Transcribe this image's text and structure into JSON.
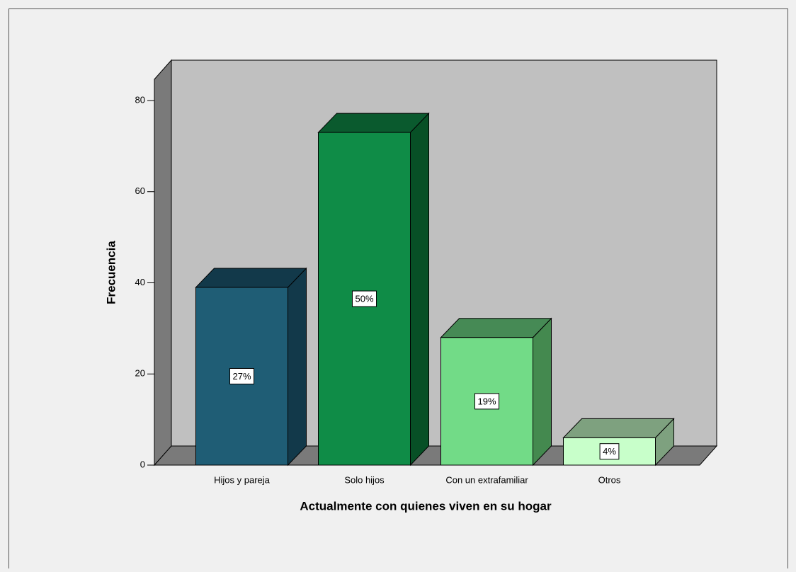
{
  "chart_data": {
    "type": "bar3d",
    "categories": [
      "Hijos y pareja",
      "Solo hijos",
      "Con un extrafamiliar",
      "Otros"
    ],
    "values": [
      39,
      73,
      28,
      6
    ],
    "bar_labels": [
      "27%",
      "50%",
      "19%",
      "4%"
    ],
    "colors": [
      "#1f5d75",
      "#0f8c47",
      "#72db87",
      "#c8ffca"
    ],
    "top_colors": [
      "#12394a",
      "#0a5a2e",
      "#468a55",
      "#7ea17f"
    ],
    "side_colors": [
      "#12394a",
      "#075026",
      "#44894f",
      "#7ea17f"
    ],
    "ylim": [
      0,
      85
    ],
    "yticks": [
      0,
      20,
      40,
      60,
      80
    ],
    "y_label": "Frecuencia",
    "x_label": "Actualmente con quienes viven en su hogar"
  }
}
